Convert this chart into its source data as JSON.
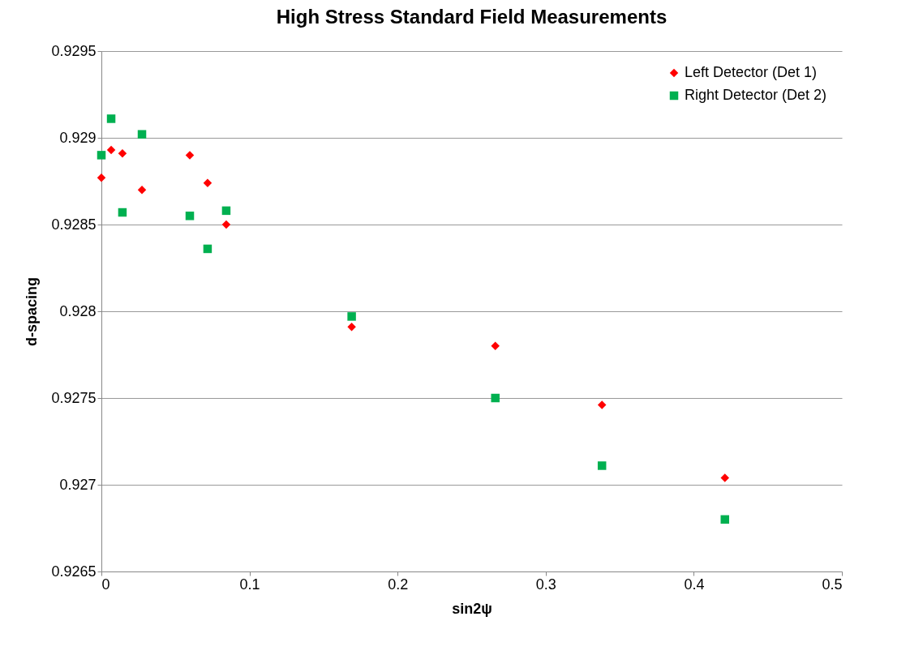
{
  "chart_data": {
    "type": "scatter",
    "title": "High Stress Standard Field Measurements",
    "xlabel": "sin2ψ",
    "ylabel": "d-spacing",
    "xlim": [
      0,
      0.5
    ],
    "xticks": [
      0,
      0.1,
      0.2,
      0.3,
      0.4,
      0.5
    ],
    "ylim": [
      0.9265,
      0.9295
    ],
    "yticks": [
      0.9265,
      0.927,
      0.9275,
      0.928,
      0.9285,
      0.929,
      0.9295
    ],
    "grid": "y",
    "legend": "top right",
    "series": [
      {
        "name": "Left Detector (Det 1)",
        "color": "#ff0000",
        "marker": "diamond",
        "x": [
          0,
          0.0066,
          0.0142,
          0.0274,
          0.0597,
          0.0717,
          0.0843,
          0.169,
          0.266,
          0.338,
          0.421
        ],
        "values": [
          0.92877,
          0.92893,
          0.92891,
          0.9287,
          0.9289,
          0.92874,
          0.9285,
          0.92791,
          0.9278,
          0.92746,
          0.92704
        ]
      },
      {
        "name": "Right Detector (Det 2)",
        "color": "#00b050",
        "marker": "square",
        "x": [
          0,
          0.0066,
          0.0142,
          0.0274,
          0.0597,
          0.0717,
          0.0843,
          0.169,
          0.266,
          0.338,
          0.421
        ],
        "values": [
          0.9289,
          0.92911,
          0.92857,
          0.92902,
          0.92855,
          0.92836,
          0.92858,
          0.92797,
          0.9275,
          0.92711,
          0.9268
        ]
      }
    ]
  }
}
